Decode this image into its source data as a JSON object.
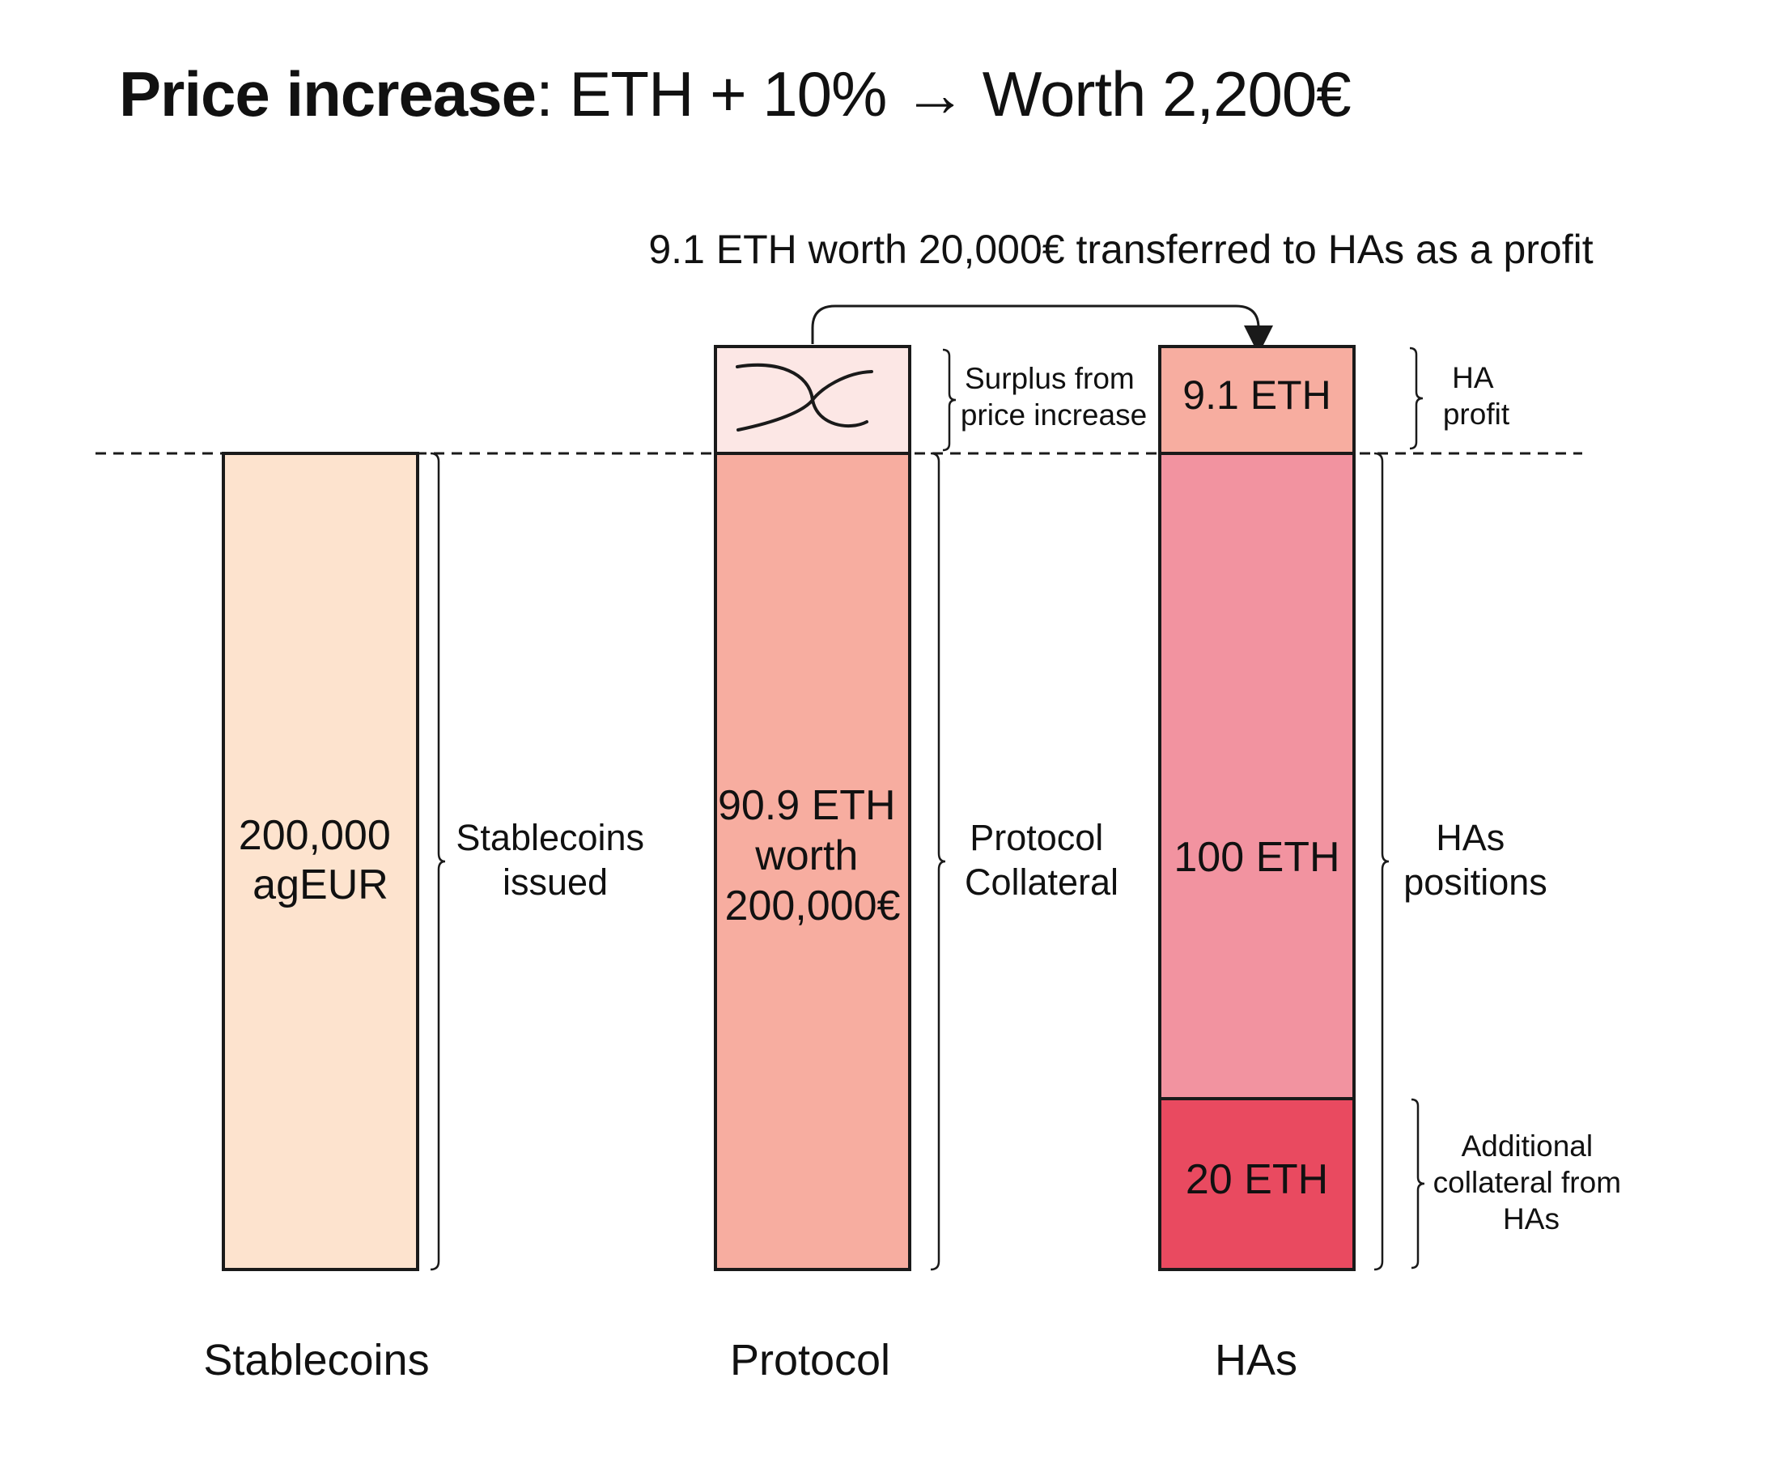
{
  "title": {
    "bold": "Price increase",
    "rest": ": ETH + 10% → Worth 2,200€"
  },
  "transfer_caption": "9.1 ETH worth 20,000€ transferred to HAs as a profit",
  "columns": {
    "stablecoins": {
      "label": "Stablecoins",
      "bar_lines": [
        "200,000",
        "agEUR"
      ],
      "bracket_lines": [
        "Stablecoins",
        "issued"
      ]
    },
    "protocol": {
      "label": "Protocol",
      "bar_lines": [
        "90.9 ETH",
        "worth",
        "200,000€"
      ],
      "bracket_lines": [
        "Protocol",
        "Collateral"
      ],
      "surplus_lines": [
        "Surplus from",
        "price increase"
      ]
    },
    "has": {
      "label": "HAs",
      "profit_box": "9.1 ETH",
      "profit_lines": [
        "HA",
        "profit"
      ],
      "main_box": "100 ETH",
      "positions_lines": [
        "HAs",
        "positions"
      ],
      "collateral_box": "20 ETH",
      "collateral_lines": [
        "Additional",
        "collateral from",
        "HAs"
      ]
    }
  },
  "colors": {
    "stablecoins_fill": "#FDE3CE",
    "protocol_fill": "#F7ADA0",
    "surplus_fill": "#FCE7E5",
    "ha_profit_fill": "#F7ADA0",
    "ha_positions_fill": "#F293A0",
    "ha_collateral_fill": "#E94A60",
    "stroke": "#1A1A1A"
  }
}
